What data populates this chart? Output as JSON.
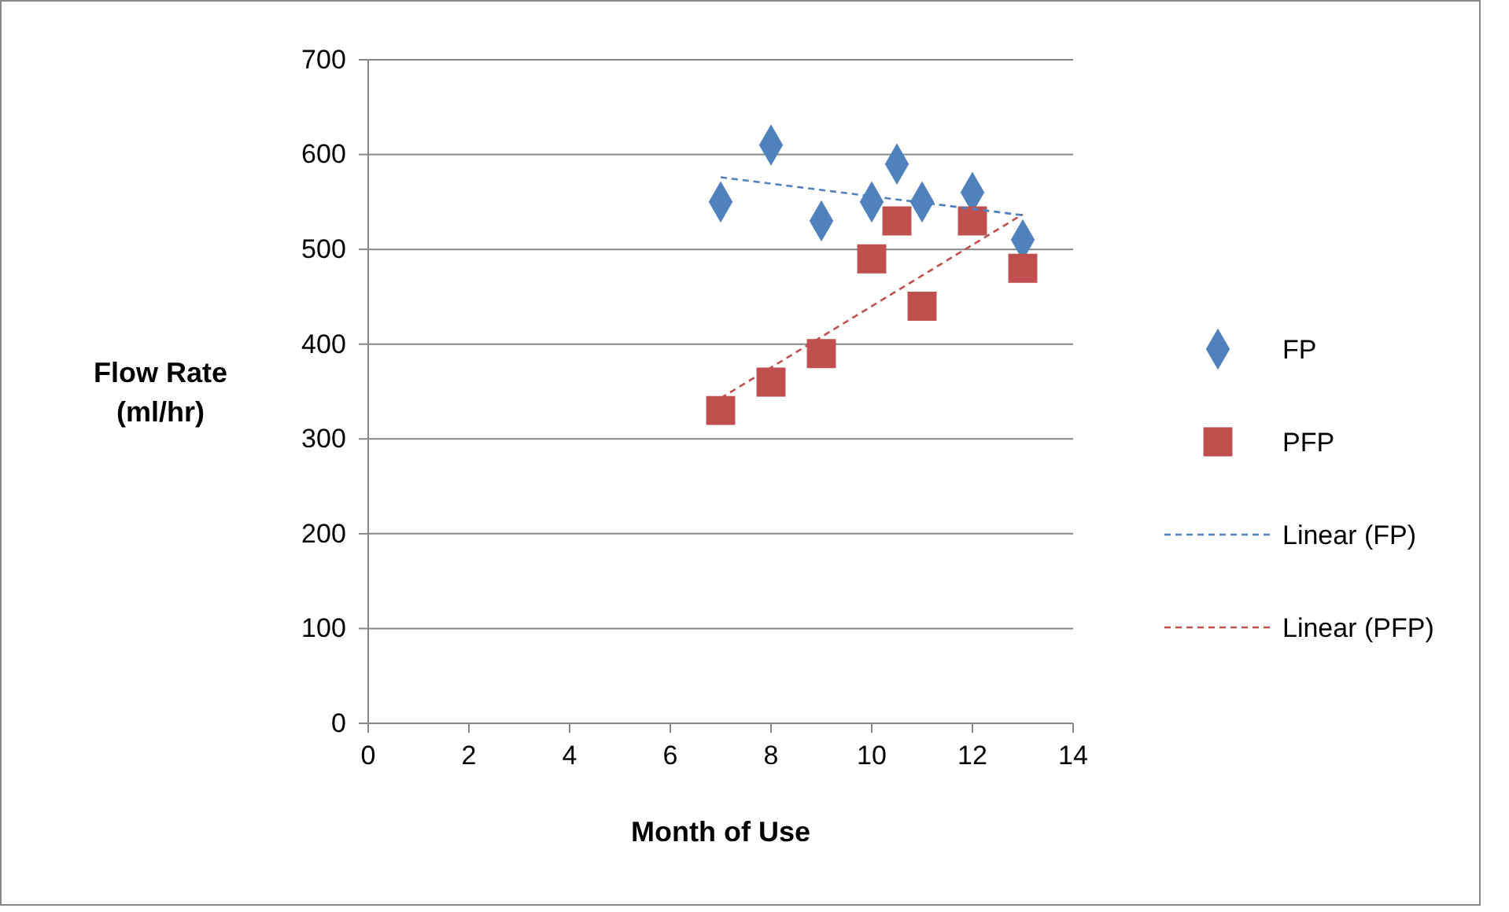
{
  "chart_data": {
    "type": "scatter",
    "xlabel": "Month of Use",
    "ylabel": "Flow Rate (ml/hr)",
    "xlim": [
      0,
      14
    ],
    "xticks": [
      0,
      2,
      4,
      6,
      8,
      10,
      12,
      14
    ],
    "ylim": [
      0,
      700
    ],
    "yticks": [
      0,
      100,
      200,
      300,
      400,
      500,
      600,
      700
    ],
    "grid": "y",
    "legend": "right",
    "series": [
      {
        "name": "FP",
        "color": "#4f81bd",
        "marker": "diamond",
        "x": [
          7,
          8,
          9,
          10,
          10.5,
          11,
          12,
          13
        ],
        "values": [
          550,
          610,
          530,
          550,
          590,
          550,
          560,
          510
        ]
      },
      {
        "name": "PFP",
        "color": "#c0504d",
        "marker": "square",
        "x": [
          7,
          8,
          9,
          10,
          10.5,
          11,
          12,
          13
        ],
        "values": [
          330,
          360,
          390,
          490,
          530,
          440,
          530,
          480
        ]
      },
      {
        "name": "Linear (FP)",
        "type": "line",
        "color": "#4f81bd",
        "line_style": "dashed",
        "marker": "none",
        "x": [
          7,
          13
        ],
        "values": [
          576,
          536
        ]
      },
      {
        "name": "Linear (PFP)",
        "type": "line",
        "color": "#c0504d",
        "line_style": "dashed",
        "marker": "none",
        "x": [
          7,
          13
        ],
        "values": [
          343,
          537
        ]
      }
    ]
  }
}
